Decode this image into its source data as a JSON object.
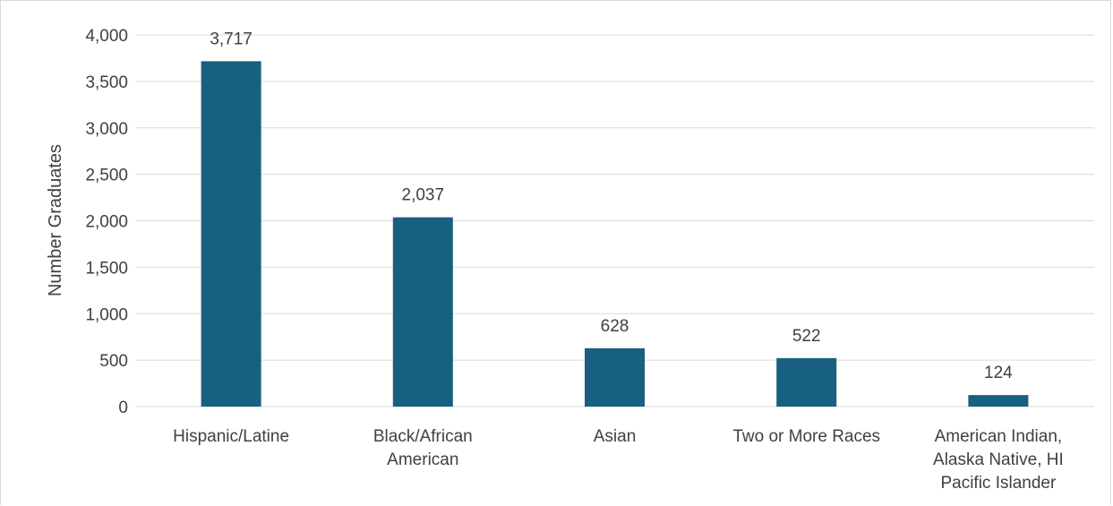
{
  "chart_data": {
    "type": "bar",
    "title": "",
    "xlabel": "",
    "ylabel": "Number Graduates",
    "ylim": [
      0,
      4000
    ],
    "y_ticks": [
      0,
      500,
      1000,
      1500,
      2000,
      2500,
      3000,
      3500,
      4000
    ],
    "y_tick_labels": [
      "0",
      "500",
      "1,000",
      "1,500",
      "2,000",
      "2,500",
      "3,000",
      "3,500",
      "4,000"
    ],
    "grid": true,
    "legend": "none",
    "bar_color": "#17607f",
    "categories": [
      [
        "Hispanic/Latine"
      ],
      [
        "Black/African",
        "American"
      ],
      [
        "Asian"
      ],
      [
        "Two or More Races"
      ],
      [
        "American Indian,",
        "Alaska Native, HI",
        "Pacific Islander"
      ]
    ],
    "values": [
      3717,
      2037,
      628,
      522,
      124
    ],
    "value_labels": [
      "3,717",
      "2,037",
      "628",
      "522",
      "124"
    ]
  }
}
